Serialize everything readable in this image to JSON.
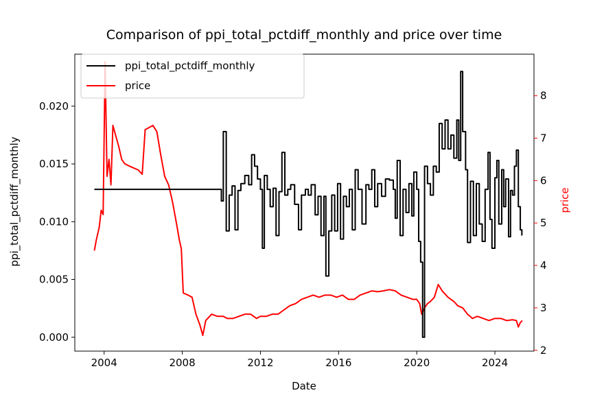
{
  "chart_data": {
    "type": "line",
    "title": "Comparison of ppi_total_pctdiff_monthly and price over time",
    "xlabel": "Date",
    "ylabel_left": "ppi_total_pctdiff_monthly",
    "ylabel_right": "price",
    "xlim": [
      2002.5,
      2026.0
    ],
    "ylim_left": [
      -0.0012,
      0.0245
    ],
    "ylim_right": [
      1.98,
      8.98
    ],
    "x_ticks": [
      "2004",
      "2008",
      "2012",
      "2016",
      "2020",
      "2024"
    ],
    "x_tick_values": [
      2004,
      2008,
      2012,
      2016,
      2020,
      2024
    ],
    "y_left_ticks": [
      "0.000",
      "0.005",
      "0.010",
      "0.015",
      "0.020"
    ],
    "y_left_tick_values": [
      0.0,
      0.005,
      0.01,
      0.015,
      0.02
    ],
    "y_right_ticks": [
      "2",
      "3",
      "4",
      "5",
      "6",
      "7",
      "8"
    ],
    "y_right_tick_values": [
      2,
      3,
      4,
      5,
      6,
      7,
      8
    ],
    "grid": false,
    "legend_position": "top-left",
    "series": [
      {
        "name": "ppi_total_pctdiff_monthly",
        "axis": "left",
        "color": "#000000",
        "step": true,
        "points": [
          [
            2003.5,
            0.0128
          ],
          [
            2009.9,
            0.0128
          ],
          [
            2010.0,
            0.0118
          ],
          [
            2010.1,
            0.0178
          ],
          [
            2010.25,
            0.0092
          ],
          [
            2010.4,
            0.0123
          ],
          [
            2010.55,
            0.0131
          ],
          [
            2010.7,
            0.0093
          ],
          [
            2010.85,
            0.0127
          ],
          [
            2011.0,
            0.0133
          ],
          [
            2011.2,
            0.014
          ],
          [
            2011.4,
            0.0132
          ],
          [
            2011.55,
            0.0158
          ],
          [
            2011.7,
            0.0148
          ],
          [
            2011.85,
            0.0137
          ],
          [
            2012.0,
            0.0128
          ],
          [
            2012.1,
            0.0077
          ],
          [
            2012.2,
            0.014
          ],
          [
            2012.35,
            0.0128
          ],
          [
            2012.5,
            0.0113
          ],
          [
            2012.65,
            0.0129
          ],
          [
            2012.8,
            0.0088
          ],
          [
            2012.95,
            0.0126
          ],
          [
            2013.1,
            0.016
          ],
          [
            2013.25,
            0.0123
          ],
          [
            2013.4,
            0.0128
          ],
          [
            2013.55,
            0.0132
          ],
          [
            2013.75,
            0.0115
          ],
          [
            2013.95,
            0.0093
          ],
          [
            2014.1,
            0.0123
          ],
          [
            2014.3,
            0.0128
          ],
          [
            2014.45,
            0.0123
          ],
          [
            2014.6,
            0.0132
          ],
          [
            2014.8,
            0.0106
          ],
          [
            2014.95,
            0.0122
          ],
          [
            2015.1,
            0.0088
          ],
          [
            2015.25,
            0.0122
          ],
          [
            2015.35,
            0.0053
          ],
          [
            2015.5,
            0.0092
          ],
          [
            2015.65,
            0.0123
          ],
          [
            2015.8,
            0.0092
          ],
          [
            2015.95,
            0.0133
          ],
          [
            2016.1,
            0.0085
          ],
          [
            2016.25,
            0.0122
          ],
          [
            2016.4,
            0.0113
          ],
          [
            2016.55,
            0.0128
          ],
          [
            2016.7,
            0.0093
          ],
          [
            2016.85,
            0.0145
          ],
          [
            2017.0,
            0.0128
          ],
          [
            2017.2,
            0.0098
          ],
          [
            2017.4,
            0.0132
          ],
          [
            2017.55,
            0.0128
          ],
          [
            2017.7,
            0.0145
          ],
          [
            2017.85,
            0.0113
          ],
          [
            2018.0,
            0.0133
          ],
          [
            2018.2,
            0.0122
          ],
          [
            2018.4,
            0.0137
          ],
          [
            2018.6,
            0.0136
          ],
          [
            2018.8,
            0.0128
          ],
          [
            2018.9,
            0.0103
          ],
          [
            2019.0,
            0.0153
          ],
          [
            2019.15,
            0.0088
          ],
          [
            2019.3,
            0.0128
          ],
          [
            2019.45,
            0.0108
          ],
          [
            2019.6,
            0.0133
          ],
          [
            2019.75,
            0.0105
          ],
          [
            2019.85,
            0.0143
          ],
          [
            2020.0,
            0.0128
          ],
          [
            2020.1,
            0.0083
          ],
          [
            2020.2,
            0.0065
          ],
          [
            2020.3,
            0.0
          ],
          [
            2020.4,
            0.0148
          ],
          [
            2020.55,
            0.0133
          ],
          [
            2020.7,
            0.0123
          ],
          [
            2020.85,
            0.0148
          ],
          [
            2021.0,
            0.0143
          ],
          [
            2021.15,
            0.0185
          ],
          [
            2021.3,
            0.0163
          ],
          [
            2021.45,
            0.0188
          ],
          [
            2021.6,
            0.0163
          ],
          [
            2021.75,
            0.0175
          ],
          [
            2021.9,
            0.0155
          ],
          [
            2022.05,
            0.0188
          ],
          [
            2022.15,
            0.0153
          ],
          [
            2022.25,
            0.023
          ],
          [
            2022.35,
            0.0178
          ],
          [
            2022.5,
            0.0145
          ],
          [
            2022.6,
            0.0082
          ],
          [
            2022.75,
            0.0135
          ],
          [
            2022.9,
            0.0088
          ],
          [
            2023.05,
            0.0133
          ],
          [
            2023.2,
            0.0098
          ],
          [
            2023.35,
            0.0083
          ],
          [
            2023.5,
            0.0128
          ],
          [
            2023.65,
            0.016
          ],
          [
            2023.75,
            0.0102
          ],
          [
            2023.85,
            0.0077
          ],
          [
            2024.0,
            0.0138
          ],
          [
            2024.1,
            0.0153
          ],
          [
            2024.2,
            0.0098
          ],
          [
            2024.35,
            0.0145
          ],
          [
            2024.45,
            0.0113
          ],
          [
            2024.55,
            0.0137
          ],
          [
            2024.7,
            0.0087
          ],
          [
            2024.8,
            0.0127
          ],
          [
            2024.9,
            0.0123
          ],
          [
            2025.0,
            0.0148
          ],
          [
            2025.1,
            0.0162
          ],
          [
            2025.2,
            0.0113
          ],
          [
            2025.3,
            0.0093
          ],
          [
            2025.38,
            0.0088
          ]
        ]
      },
      {
        "name": "price",
        "axis": "right",
        "color": "#ff0000",
        "step": false,
        "points": [
          [
            2003.5,
            4.35
          ],
          [
            2003.6,
            4.6
          ],
          [
            2003.75,
            4.9
          ],
          [
            2003.85,
            5.3
          ],
          [
            2003.95,
            5.2
          ],
          [
            2004.05,
            8.8
          ],
          [
            2004.15,
            6.1
          ],
          [
            2004.25,
            6.5
          ],
          [
            2004.35,
            5.9
          ],
          [
            2004.45,
            7.3
          ],
          [
            2004.6,
            7.05
          ],
          [
            2004.75,
            6.8
          ],
          [
            2004.9,
            6.5
          ],
          [
            2005.05,
            6.4
          ],
          [
            2005.25,
            6.35
          ],
          [
            2005.5,
            6.3
          ],
          [
            2005.75,
            6.25
          ],
          [
            2005.95,
            6.15
          ],
          [
            2006.1,
            7.2
          ],
          [
            2006.3,
            7.25
          ],
          [
            2006.5,
            7.3
          ],
          [
            2006.7,
            7.15
          ],
          [
            2006.9,
            6.6
          ],
          [
            2007.1,
            6.1
          ],
          [
            2007.3,
            5.9
          ],
          [
            2007.5,
            5.5
          ],
          [
            2007.7,
            5.0
          ],
          [
            2007.85,
            4.6
          ],
          [
            2007.95,
            4.4
          ],
          [
            2008.05,
            3.35
          ],
          [
            2008.3,
            3.3
          ],
          [
            2008.5,
            3.25
          ],
          [
            2008.7,
            2.85
          ],
          [
            2008.9,
            2.6
          ],
          [
            2009.05,
            2.35
          ],
          [
            2009.2,
            2.7
          ],
          [
            2009.5,
            2.85
          ],
          [
            2009.8,
            2.8
          ],
          [
            2010.1,
            2.8
          ],
          [
            2010.3,
            2.75
          ],
          [
            2010.6,
            2.75
          ],
          [
            2010.9,
            2.8
          ],
          [
            2011.2,
            2.85
          ],
          [
            2011.5,
            2.85
          ],
          [
            2011.8,
            2.75
          ],
          [
            2012.0,
            2.8
          ],
          [
            2012.3,
            2.8
          ],
          [
            2012.6,
            2.85
          ],
          [
            2012.9,
            2.85
          ],
          [
            2013.2,
            2.95
          ],
          [
            2013.5,
            3.05
          ],
          [
            2013.8,
            3.1
          ],
          [
            2014.1,
            3.2
          ],
          [
            2014.4,
            3.25
          ],
          [
            2014.7,
            3.3
          ],
          [
            2015.0,
            3.25
          ],
          [
            2015.3,
            3.3
          ],
          [
            2015.6,
            3.3
          ],
          [
            2015.9,
            3.25
          ],
          [
            2016.2,
            3.3
          ],
          [
            2016.5,
            3.2
          ],
          [
            2016.8,
            3.2
          ],
          [
            2017.1,
            3.3
          ],
          [
            2017.4,
            3.35
          ],
          [
            2017.7,
            3.4
          ],
          [
            2018.0,
            3.38
          ],
          [
            2018.3,
            3.4
          ],
          [
            2018.6,
            3.43
          ],
          [
            2018.9,
            3.4
          ],
          [
            2019.2,
            3.3
          ],
          [
            2019.5,
            3.25
          ],
          [
            2019.8,
            3.2
          ],
          [
            2020.0,
            3.2
          ],
          [
            2020.15,
            3.1
          ],
          [
            2020.25,
            2.85
          ],
          [
            2020.4,
            3.0
          ],
          [
            2020.55,
            3.1
          ],
          [
            2020.7,
            3.15
          ],
          [
            2020.9,
            3.25
          ],
          [
            2021.1,
            3.55
          ],
          [
            2021.3,
            3.4
          ],
          [
            2021.6,
            3.25
          ],
          [
            2021.9,
            3.15
          ],
          [
            2022.1,
            3.05
          ],
          [
            2022.35,
            3.0
          ],
          [
            2022.6,
            2.85
          ],
          [
            2022.85,
            2.75
          ],
          [
            2023.1,
            2.8
          ],
          [
            2023.4,
            2.75
          ],
          [
            2023.7,
            2.7
          ],
          [
            2024.0,
            2.75
          ],
          [
            2024.3,
            2.75
          ],
          [
            2024.6,
            2.7
          ],
          [
            2024.9,
            2.72
          ],
          [
            2025.1,
            2.7
          ],
          [
            2025.2,
            2.55
          ],
          [
            2025.3,
            2.65
          ],
          [
            2025.4,
            2.7
          ]
        ]
      }
    ]
  }
}
